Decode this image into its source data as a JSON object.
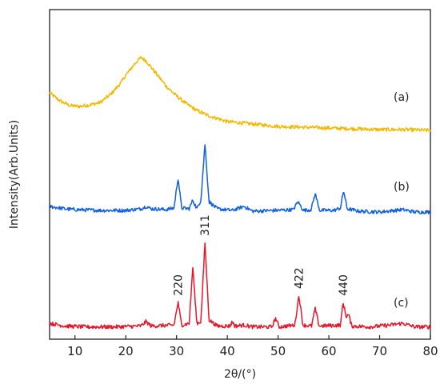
{
  "chart_data": {
    "type": "line",
    "xlabel": "2θ/(°)",
    "ylabel": "Intensity(Arb.Units)",
    "xlim": [
      5,
      80
    ],
    "x_ticks": [
      "10",
      "20",
      "30",
      "40",
      "50",
      "60",
      "70",
      "80"
    ],
    "y_ticks_shown": false,
    "grid": false,
    "series": [
      {
        "name": "(a)",
        "color": "#f5b800",
        "x": [
          5,
          7,
          9,
          11,
          13,
          15,
          17,
          19,
          20,
          21,
          22,
          23,
          24,
          25,
          26,
          27,
          28,
          30,
          32,
          34,
          36,
          38,
          40,
          45,
          50,
          55,
          60,
          65,
          70,
          75,
          80
        ],
        "y": [
          0.52,
          0.42,
          0.36,
          0.35,
          0.37,
          0.4,
          0.5,
          0.64,
          0.74,
          0.82,
          0.9,
          0.96,
          0.92,
          0.84,
          0.76,
          0.68,
          0.6,
          0.48,
          0.38,
          0.3,
          0.24,
          0.2,
          0.16,
          0.13,
          0.1,
          0.09,
          0.08,
          0.07,
          0.06,
          0.06,
          0.05
        ]
      },
      {
        "name": "(b)",
        "color": "#1060e0",
        "x": [
          5,
          8,
          10,
          15,
          20,
          23,
          24,
          25,
          28,
          29.5,
          30.3,
          31,
          32.5,
          33.2,
          34,
          34.8,
          35.6,
          36.4,
          38,
          41,
          43.3,
          45,
          49.5,
          53,
          53.9,
          55,
          56.5,
          57.3,
          58.2,
          61,
          62.3,
          62.9,
          63.6,
          66,
          70,
          74.5,
          77,
          80
        ],
        "y": [
          0.1,
          0.07,
          0.06,
          0.05,
          0.05,
          0.07,
          0.1,
          0.07,
          0.06,
          0.08,
          0.46,
          0.08,
          0.07,
          0.18,
          0.07,
          0.18,
          0.88,
          0.16,
          0.07,
          0.05,
          0.1,
          0.04,
          0.05,
          0.06,
          0.16,
          0.05,
          0.06,
          0.26,
          0.05,
          0.05,
          0.08,
          0.3,
          0.07,
          0.04,
          0.03,
          0.06,
          0.03,
          0.03
        ]
      },
      {
        "name": "(c)",
        "color": "#e8162a",
        "x": [
          5,
          8,
          12,
          18,
          23,
          24,
          25,
          29.5,
          30.3,
          31,
          32.5,
          33.2,
          34,
          34.8,
          35.6,
          36.4,
          38,
          40.5,
          41,
          41.5,
          43.3,
          45,
          48.8,
          49.5,
          50.2,
          53.3,
          54.1,
          54.9,
          56.6,
          57.3,
          58.1,
          62.3,
          62.8,
          63.4,
          63.9,
          64.5,
          68,
          72,
          74.5,
          77,
          80
        ],
        "y": [
          0.08,
          0.05,
          0.04,
          0.04,
          0.05,
          0.1,
          0.05,
          0.06,
          0.32,
          0.06,
          0.08,
          0.72,
          0.08,
          0.1,
          1.0,
          0.12,
          0.05,
          0.05,
          0.1,
          0.05,
          0.06,
          0.04,
          0.04,
          0.14,
          0.04,
          0.06,
          0.4,
          0.06,
          0.05,
          0.25,
          0.05,
          0.06,
          0.32,
          0.16,
          0.18,
          0.05,
          0.04,
          0.06,
          0.08,
          0.04,
          0.04
        ]
      }
    ],
    "annotations": [
      {
        "text": "220",
        "x": 30.3
      },
      {
        "text": "311",
        "x": 35.6
      },
      {
        "text": "422",
        "x": 54.1
      },
      {
        "text": "440",
        "x": 62.8
      }
    ]
  }
}
